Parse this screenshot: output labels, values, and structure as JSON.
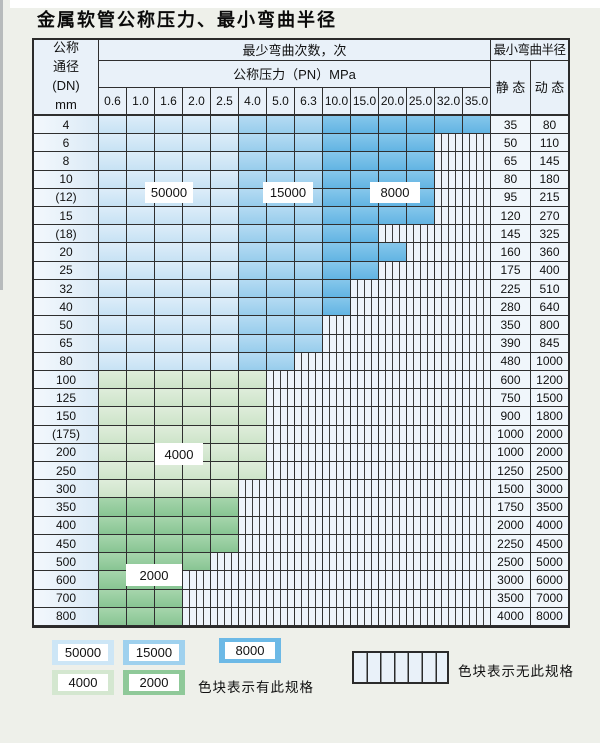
{
  "title": "金属软管公称压力、最小弯曲半径",
  "table": {
    "corner_header_lines": [
      "公称",
      "通径",
      "(DN)",
      "mm"
    ],
    "bend_cycles_header": "最少弯曲次数，次",
    "pressure_header": "公称压力（PN）MPa",
    "radius_header": "最小弯曲半径",
    "static_header": "静 态",
    "dynamic_header": "动 态",
    "pressure_columns": [
      "0.6",
      "1.0",
      "1.6",
      "2.0",
      "2.5",
      "4.0",
      "5.0",
      "6.3",
      "10.0",
      "15.0",
      "20.0",
      "25.0",
      "32.0",
      "35.0"
    ],
    "rows": [
      {
        "dn": "4",
        "cells": [
          [
            "50000",
            5
          ],
          [
            "15000",
            3
          ],
          [
            "8000",
            6
          ]
        ],
        "static": "35",
        "dynamic": "80"
      },
      {
        "dn": "6",
        "cells": [
          [
            "50000",
            5
          ],
          [
            "15000",
            3
          ],
          [
            "8000",
            4
          ]
        ],
        "static": "50",
        "dynamic": "110"
      },
      {
        "dn": "8",
        "cells": [
          [
            "50000",
            5
          ],
          [
            "15000",
            3
          ],
          [
            "8000",
            4
          ]
        ],
        "static": "65",
        "dynamic": "145"
      },
      {
        "dn": "10",
        "cells": [
          [
            "50000",
            5
          ],
          [
            "15000",
            3
          ],
          [
            "8000",
            4
          ]
        ],
        "static": "80",
        "dynamic": "180"
      },
      {
        "dn": "(12)",
        "cells": [
          [
            "50000",
            5
          ],
          [
            "15000",
            3
          ],
          [
            "8000",
            4
          ]
        ],
        "static": "95",
        "dynamic": "215"
      },
      {
        "dn": "15",
        "cells": [
          [
            "50000",
            5
          ],
          [
            "15000",
            3
          ],
          [
            "8000",
            4
          ]
        ],
        "static": "120",
        "dynamic": "270"
      },
      {
        "dn": "(18)",
        "cells": [
          [
            "50000",
            5
          ],
          [
            "15000",
            3
          ],
          [
            "8000",
            2
          ]
        ],
        "static": "145",
        "dynamic": "325"
      },
      {
        "dn": "20",
        "cells": [
          [
            "50000",
            5
          ],
          [
            "15000",
            3
          ],
          [
            "8000",
            3
          ]
        ],
        "static": "160",
        "dynamic": "360"
      },
      {
        "dn": "25",
        "cells": [
          [
            "50000",
            5
          ],
          [
            "15000",
            3
          ],
          [
            "8000",
            2
          ]
        ],
        "static": "175",
        "dynamic": "400"
      },
      {
        "dn": "32",
        "cells": [
          [
            "50000",
            5
          ],
          [
            "15000",
            3
          ],
          [
            "8000",
            1
          ]
        ],
        "static": "225",
        "dynamic": "510"
      },
      {
        "dn": "40",
        "cells": [
          [
            "50000",
            5
          ],
          [
            "15000",
            3
          ],
          [
            "8000",
            1
          ]
        ],
        "static": "280",
        "dynamic": "640"
      },
      {
        "dn": "50",
        "cells": [
          [
            "50000",
            5
          ],
          [
            "15000",
            3
          ]
        ],
        "static": "350",
        "dynamic": "800"
      },
      {
        "dn": "65",
        "cells": [
          [
            "50000",
            5
          ],
          [
            "15000",
            3
          ]
        ],
        "static": "390",
        "dynamic": "845"
      },
      {
        "dn": "80",
        "cells": [
          [
            "50000",
            5
          ],
          [
            "15000",
            2
          ]
        ],
        "static": "480",
        "dynamic": "1000"
      },
      {
        "dn": "100",
        "cells": [
          [
            "4000",
            6
          ]
        ],
        "static": "600",
        "dynamic": "1200"
      },
      {
        "dn": "125",
        "cells": [
          [
            "4000",
            6
          ]
        ],
        "static": "750",
        "dynamic": "1500"
      },
      {
        "dn": "150",
        "cells": [
          [
            "4000",
            6
          ]
        ],
        "static": "900",
        "dynamic": "1800"
      },
      {
        "dn": "(175)",
        "cells": [
          [
            "4000",
            6
          ]
        ],
        "static": "1000",
        "dynamic": "2000"
      },
      {
        "dn": "200",
        "cells": [
          [
            "4000",
            6
          ]
        ],
        "static": "1000",
        "dynamic": "2000"
      },
      {
        "dn": "250",
        "cells": [
          [
            "4000",
            6
          ]
        ],
        "static": "1250",
        "dynamic": "2500"
      },
      {
        "dn": "300",
        "cells": [
          [
            "4000",
            5
          ]
        ],
        "static": "1500",
        "dynamic": "3000"
      },
      {
        "dn": "350",
        "cells": [
          [
            "2000",
            5
          ]
        ],
        "static": "1750",
        "dynamic": "3500"
      },
      {
        "dn": "400",
        "cells": [
          [
            "2000",
            5
          ]
        ],
        "static": "2000",
        "dynamic": "4000"
      },
      {
        "dn": "450",
        "cells": [
          [
            "2000",
            5
          ]
        ],
        "static": "2250",
        "dynamic": "4500"
      },
      {
        "dn": "500",
        "cells": [
          [
            "2000",
            4
          ]
        ],
        "static": "2500",
        "dynamic": "5000"
      },
      {
        "dn": "600",
        "cells": [
          [
            "2000",
            3
          ]
        ],
        "static": "3000",
        "dynamic": "6000"
      },
      {
        "dn": "700",
        "cells": [
          [
            "2000",
            3
          ]
        ],
        "static": "3500",
        "dynamic": "7000"
      },
      {
        "dn": "800",
        "cells": [
          [
            "2000",
            3
          ]
        ],
        "static": "4000",
        "dynamic": "8000"
      }
    ]
  },
  "overlays": {
    "cycles_50000": "50000",
    "cycles_15000": "15000",
    "cycles_8000": "8000",
    "cycles_4000": "4000",
    "cycles_2000": "2000"
  },
  "legend": {
    "item_50000": "50000",
    "item_15000": "15000",
    "item_8000": "8000",
    "item_4000": "4000",
    "item_2000": "2000",
    "has_spec_note": "色块表示有此规格",
    "no_spec_note": "色块表示无此规格"
  },
  "colors": {
    "band_50000": "#cde6f6",
    "band_15000": "#9fd1ee",
    "band_8000": "#6cb9e6",
    "band_4000": "#d4e7d0",
    "band_2000": "#8fc999",
    "no_spec_fill": "#edf3fa",
    "grid_line": "#2f2f2f",
    "page_background": "#eef0ea"
  }
}
